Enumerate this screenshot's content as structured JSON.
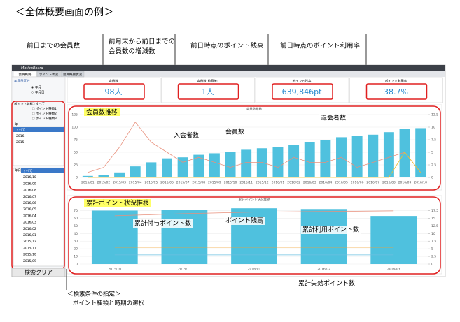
{
  "title": "＜全体概要画面の例＞",
  "callouts": [
    [
      "前日までの会員数"
    ],
    [
      "前月末から前日までの",
      "会員数の増減数"
    ],
    [
      "前日時点のポイント残高"
    ],
    [
      "前日時点のポイント利用率"
    ]
  ],
  "app": {
    "logo": "MotionBoard",
    "tabs": [
      "会員概要",
      "ポイント状況",
      "会員概要状況"
    ],
    "kpis": [
      {
        "label": "会員数",
        "value": "98人"
      },
      {
        "label": "会員数(前月差)",
        "value": "1人"
      },
      {
        "label": "ポイント残高",
        "value": "639,846pt"
      },
      {
        "label": "ポイント利用率",
        "value": "38.7%"
      }
    ],
    "sidebar": {
      "period_label": "年月日区分",
      "radios": [
        "年月",
        "年月日"
      ],
      "point_label": "ポイント名称",
      "checks": [
        "すべて",
        "ポイント種類1",
        "ポイント種類2",
        "ポイント種類3"
      ],
      "year_label": "年",
      "years": [
        "すべて",
        "2016",
        "2015"
      ],
      "month_label": "年月",
      "months": [
        "すべて",
        "2016/10",
        "2016/09",
        "2016/08",
        "2016/07",
        "2016/06",
        "2016/05",
        "2016/04",
        "2016/03",
        "2016/02",
        "2016/01",
        "2015/12",
        "2015/11",
        "2015/10",
        "2015/09"
      ]
    },
    "clear_button": "検索クリア"
  },
  "charts": [
    {
      "type": "bar",
      "title": "会員数推移",
      "annotation": "会員数推移",
      "categories": [
        "2015/01",
        "2015/02",
        "2015/03",
        "2015/04",
        "2015/05",
        "2015/06",
        "2015/07",
        "2015/08",
        "2015/09",
        "2015/10",
        "2015/11",
        "2015/12",
        "2016/01",
        "2016/02",
        "2016/03",
        "2016/04",
        "2016/05",
        "2016/06",
        "2016/07",
        "2016/08",
        "2016/09",
        "2016/10"
      ],
      "bar": {
        "name": "会員数",
        "color": "#4fc1de",
        "values": [
          3,
          5,
          10,
          22,
          30,
          38,
          40,
          45,
          48,
          50,
          55,
          58,
          60,
          65,
          70,
          75,
          80,
          82,
          85,
          90,
          97,
          98
        ]
      },
      "lines": [
        {
          "name": "入会者数",
          "color": "#e8907c",
          "axis": "y2",
          "values": [
            1,
            2,
            6,
            11,
            7,
            5,
            3,
            4,
            3,
            2,
            3,
            3,
            2,
            4,
            3,
            3,
            4,
            2,
            3,
            4,
            5,
            1
          ]
        },
        {
          "name": "退会者数",
          "color": "#f0c030",
          "axis": "y2",
          "values": [
            0,
            0,
            0,
            0,
            0,
            0,
            0,
            0,
            0,
            0,
            0,
            0,
            0,
            0,
            0,
            0,
            0,
            0,
            0,
            0,
            5,
            1
          ]
        }
      ],
      "ylim": [
        0,
        125
      ],
      "yticks": [
        0,
        25,
        50,
        75,
        100,
        125
      ],
      "y2lim": [
        0,
        12.5
      ],
      "y2ticks": [
        0,
        2.5,
        5,
        7.5,
        10,
        12.5
      ]
    },
    {
      "type": "bar",
      "title": "累計ポイント状況推移",
      "annotation": "累計ポイント状況推移",
      "categories": [
        "2015/10",
        "2015/11",
        "2016/01",
        "2016/02",
        "2016/03"
      ],
      "bar": {
        "name": "ポイント残高",
        "color": "#4fc1de",
        "values": [
          70,
          71,
          73,
          72,
          63
        ]
      },
      "lines": [
        {
          "name": "累計付与ポイント数",
          "color": "#e8907c",
          "axis": "y2",
          "values": [
            15.8,
            16.5,
            17,
            17.2,
            17.4
          ]
        },
        {
          "name": "累計利用ポイント数",
          "color": "#f0a030",
          "axis": "y2",
          "values": [
            5.5,
            5.5,
            5.5,
            5.5,
            5.5
          ]
        },
        {
          "name": "累計失効ポイント数",
          "color": "#6cc0e0",
          "axis": "y2",
          "values": [
            3,
            3,
            3,
            3,
            3
          ]
        }
      ],
      "ylim": [
        0,
        75
      ],
      "yticks": [
        0,
        10,
        20,
        30,
        40,
        50,
        60,
        70
      ],
      "y2lim": [
        0,
        18.75
      ],
      "y2ticks": [
        0,
        2.5,
        5,
        7.5,
        10,
        12.5,
        15,
        17.5
      ]
    }
  ],
  "bottom_note": [
    "＜検索条件の指定＞",
    "ポイント種類と時期の選択"
  ]
}
